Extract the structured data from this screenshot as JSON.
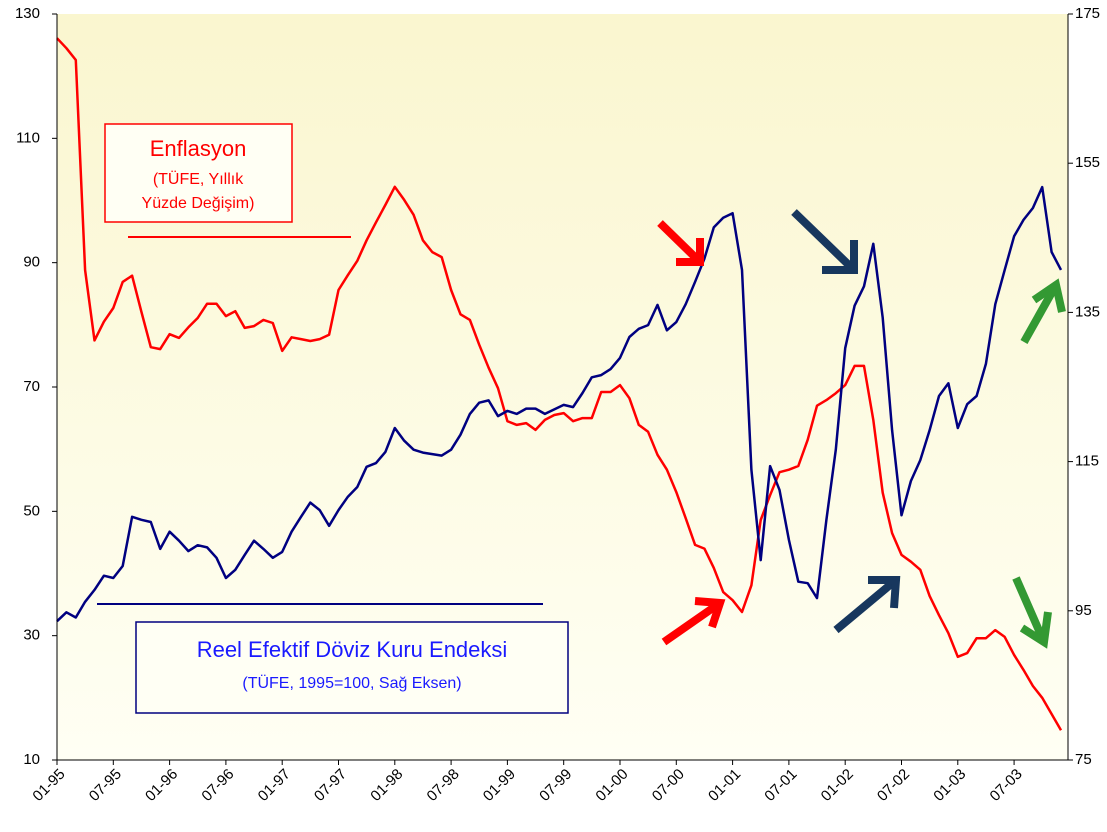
{
  "chart_data": {
    "type": "line",
    "categories": [
      "01-95",
      null,
      null,
      null,
      null,
      null,
      "07-95",
      null,
      null,
      null,
      null,
      null,
      "01-96",
      null,
      null,
      null,
      null,
      null,
      "07-96",
      null,
      null,
      null,
      null,
      null,
      "01-97",
      null,
      null,
      null,
      null,
      null,
      "07-97",
      null,
      null,
      null,
      null,
      null,
      "01-98",
      null,
      null,
      null,
      null,
      null,
      "07-98",
      null,
      null,
      null,
      null,
      null,
      "01-99",
      null,
      null,
      null,
      null,
      null,
      "07-99",
      null,
      null,
      null,
      null,
      null,
      "01-00",
      null,
      null,
      null,
      null,
      null,
      "07-00",
      null,
      null,
      null,
      null,
      null,
      "01-01",
      null,
      null,
      null,
      null,
      null,
      "07-01",
      null,
      null,
      null,
      null,
      null,
      "01-02",
      null,
      null,
      null,
      null,
      null,
      "07-02",
      null,
      null,
      null,
      null,
      null,
      "01-03",
      null,
      null,
      null,
      null,
      null,
      "07-03",
      null,
      null,
      null,
      null,
      null
    ],
    "series": [
      {
        "name": "Enflasyon",
        "color": "#ff0000",
        "axis": "y",
        "values": [
          126.1,
          124.5,
          122.6,
          88.8,
          77.5,
          80.5,
          82.7,
          86.9,
          87.9,
          82.1,
          76.4,
          76.1,
          78.5,
          77.9,
          79.6,
          81.1,
          83.4,
          83.4,
          81.4,
          82.2,
          79.5,
          79.8,
          80.8,
          80.3,
          75.8,
          78.0,
          77.7,
          77.4,
          77.7,
          78.4,
          85.6,
          88.0,
          90.3,
          93.6,
          96.5,
          99.3,
          102.2,
          100.1,
          97.7,
          93.6,
          91.7,
          90.9,
          85.6,
          81.7,
          80.8,
          76.8,
          73.1,
          69.8,
          64.5,
          63.9,
          64.2,
          63.1,
          64.7,
          65.5,
          65.8,
          64.5,
          65.0,
          65.0,
          69.2,
          69.2,
          70.3,
          68.2,
          63.9,
          62.8,
          59.1,
          56.7,
          53.1,
          48.9,
          44.6,
          44.0,
          40.9,
          37.0,
          35.7,
          33.8,
          38.1,
          48.6,
          52.6,
          56.3,
          56.7,
          57.3,
          61.5,
          67.0,
          67.9,
          69.0,
          70.3,
          73.4,
          73.4,
          64.7,
          53.0,
          46.5,
          43.0,
          41.9,
          40.6,
          36.4,
          33.3,
          30.4,
          26.6,
          27.2,
          29.6,
          29.6,
          30.9,
          29.8,
          26.9,
          24.5,
          21.9,
          20.0,
          17.4,
          14.8
        ]
      },
      {
        "name": "Reel Efektif Döviz Kuru Endeksi",
        "color": "#000080",
        "axis": "y2",
        "values": [
          93.6,
          94.8,
          94.1,
          96.2,
          97.8,
          99.7,
          99.4,
          101.0,
          107.6,
          107.2,
          106.9,
          103.3,
          105.6,
          104.4,
          103.0,
          103.8,
          103.5,
          102.1,
          99.4,
          100.5,
          102.5,
          104.4,
          103.3,
          102.1,
          102.9,
          105.6,
          107.6,
          109.5,
          108.5,
          106.4,
          108.5,
          110.3,
          111.6,
          114.3,
          114.8,
          116.3,
          119.5,
          117.8,
          116.6,
          116.2,
          116.0,
          115.8,
          116.6,
          118.6,
          121.4,
          122.9,
          123.2,
          121.1,
          121.8,
          121.4,
          122.1,
          122.1,
          121.4,
          122.0,
          122.6,
          122.3,
          124.2,
          126.3,
          126.6,
          127.4,
          128.9,
          131.7,
          132.8,
          133.3,
          136.0,
          132.6,
          133.7,
          136.1,
          139.1,
          142.2,
          146.4,
          147.7,
          148.3,
          140.7,
          113.9,
          101.8,
          114.4,
          111.2,
          104.5,
          98.9,
          98.7,
          96.7,
          107.2,
          116.6,
          130.2,
          135.9,
          138.5,
          144.2,
          134.3,
          119.2,
          107.8,
          112.4,
          115.2,
          119.2,
          123.8,
          125.5,
          119.5,
          122.7,
          123.8,
          128.1,
          136.1,
          140.7,
          145.2,
          147.4,
          149.0,
          151.8,
          143.1,
          140.7
        ]
      }
    ],
    "annotations": [
      "(TÜFE, Yıllık",
      "Yüzde Değişim)",
      "(TÜFE, 1995=100, Sağ Eksen)"
    ],
    "ylim": [
      10,
      130
    ],
    "yticks": [
      10,
      30,
      50,
      70,
      90,
      110,
      130
    ],
    "y2lim": [
      75,
      175
    ],
    "y2ticks": [
      75,
      95,
      115,
      135,
      155,
      175
    ]
  }
}
